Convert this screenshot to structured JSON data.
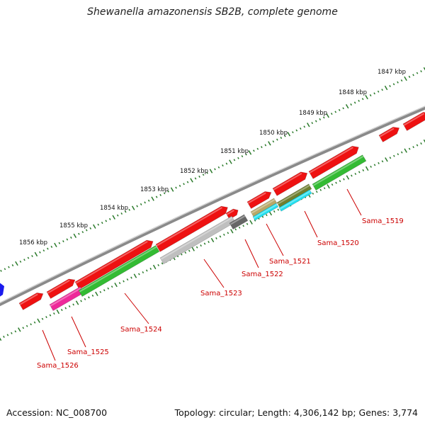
{
  "title": "Shewanella amazonensis SB2B, complete genome",
  "footer": {
    "accession": "Accession: NC_008700",
    "summary": "Topology: circular; Length: 4,306,142 bp; Genes: 3,774"
  },
  "colors": {
    "red": "#ee1111",
    "green": "#33bb33",
    "gray": "#bfbfbf",
    "dark_gray": "#666666",
    "magenta": "#ee2a9a",
    "khaki": "#b8a868",
    "olive": "#6f7f2f",
    "cyan": "#22e0f0",
    "blue": "#1a1aee",
    "backbone": "#8a8a8a",
    "tick": "#2a7a2a",
    "label": "#cc0000"
  },
  "kbp_markers": [
    "1847 kbp",
    "1848 kbp",
    "1849 kbp",
    "1850 kbp",
    "1851 kbp",
    "1852 kbp",
    "1853 kbp",
    "1854 kbp",
    "1855 kbp",
    "1856 kbp"
  ],
  "gene_labels": [
    "Sama_1519",
    "Sama_1520",
    "Sama_1521",
    "Sama_1522",
    "Sama_1523",
    "Sama_1524",
    "Sama_1525",
    "Sama_1526"
  ]
}
